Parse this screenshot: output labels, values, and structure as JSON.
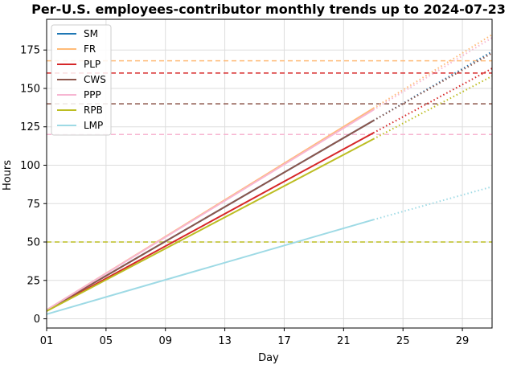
{
  "chart_data": {
    "type": "line",
    "title": "Per-U.S. employees-contributor monthly trends up to 2024-07-23",
    "xlabel": "Day",
    "ylabel": "Hours",
    "xlim": [
      1,
      31
    ],
    "ylim": [
      -6,
      195
    ],
    "xticks": [
      1,
      5,
      9,
      13,
      17,
      21,
      25,
      29
    ],
    "xtick_labels": [
      "01",
      "05",
      "09",
      "13",
      "17",
      "21",
      "25",
      "29"
    ],
    "yticks": [
      0,
      25,
      50,
      75,
      100,
      125,
      150,
      175
    ],
    "actual_through_day": 23,
    "grid": true,
    "legend_position": "top-left",
    "series": [
      {
        "name": "SM",
        "color": "#1f77b4",
        "start": 5.5,
        "actual_end": 129,
        "projected_end": 174,
        "target": null
      },
      {
        "name": "FR",
        "color": "#ffbb78",
        "start": 5.8,
        "actual_end": 137,
        "projected_end": 185,
        "target": 168
      },
      {
        "name": "PLP",
        "color": "#d62728",
        "start": 5.2,
        "actual_end": 121,
        "projected_end": 163,
        "target": 160
      },
      {
        "name": "CWS",
        "color": "#8c564b",
        "start": 5.5,
        "actual_end": 129,
        "projected_end": 173,
        "target": 140
      },
      {
        "name": "PPP",
        "color": "#f7b6d2",
        "start": 5.8,
        "actual_end": 136,
        "projected_end": 183,
        "target": 120
      },
      {
        "name": "RPB",
        "color": "#bcbd22",
        "start": 5.0,
        "actual_end": 117,
        "projected_end": 158,
        "target": 50
      },
      {
        "name": "LMP",
        "color": "#9edae5",
        "start": 3.0,
        "actual_end": 64.5,
        "projected_end": 86,
        "target": null
      }
    ]
  }
}
